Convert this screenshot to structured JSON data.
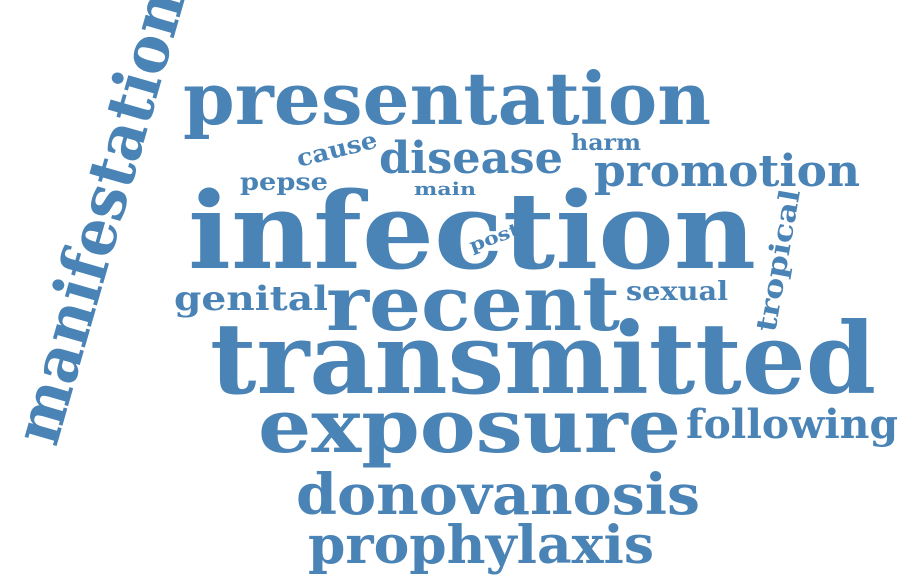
{
  "color": "#4a83b5",
  "words": {
    "infection": "infection",
    "transmitted": "transmitted",
    "presentation": "presentation",
    "exposure": "exposure",
    "recent": "recent",
    "manifestation": "manifestation",
    "donovanosis": "donovanosis",
    "prophylaxis": "prophylaxis",
    "promotion": "promotion",
    "disease": "disease",
    "following": "following",
    "genital": "genital",
    "tropical": "tropical",
    "sexual": "sexual",
    "cause": "cause",
    "pepse": "pepse",
    "harm": "harm",
    "main": "main",
    "post": "post"
  }
}
